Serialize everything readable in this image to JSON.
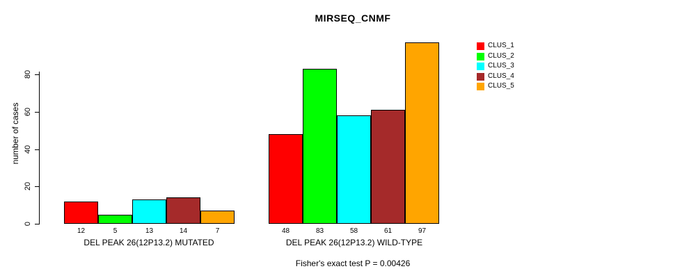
{
  "title": "MIRSEQ_CNMF",
  "footer": "Fisher's exact test P = 0.00426",
  "y_axis": {
    "label": "number of cases"
  },
  "chart_data": {
    "type": "bar",
    "title": "MIRSEQ_CNMF",
    "xlabel": "",
    "ylabel": "number of cases",
    "ylim": [
      0,
      97
    ],
    "y_ticks": [
      0,
      20,
      40,
      60,
      80
    ],
    "grid": false,
    "legend_position": "right",
    "value_labels": true,
    "categories": [
      "DEL PEAK 26(12P13.2) MUTATED",
      "DEL PEAK 26(12P13.2) WILD-TYPE"
    ],
    "series": [
      {
        "name": "CLUS_1",
        "color": "#ff0000",
        "values": [
          12,
          48
        ]
      },
      {
        "name": "CLUS_2",
        "color": "#00ff00",
        "values": [
          5,
          83
        ]
      },
      {
        "name": "CLUS_3",
        "color": "#00ffff",
        "values": [
          13,
          58
        ]
      },
      {
        "name": "CLUS_4",
        "color": "#a52a2a",
        "values": [
          14,
          61
        ]
      },
      {
        "name": "CLUS_5",
        "color": "#ffa500",
        "values": [
          7,
          97
        ]
      }
    ],
    "annotation": "Fisher's exact test P = 0.00426"
  }
}
